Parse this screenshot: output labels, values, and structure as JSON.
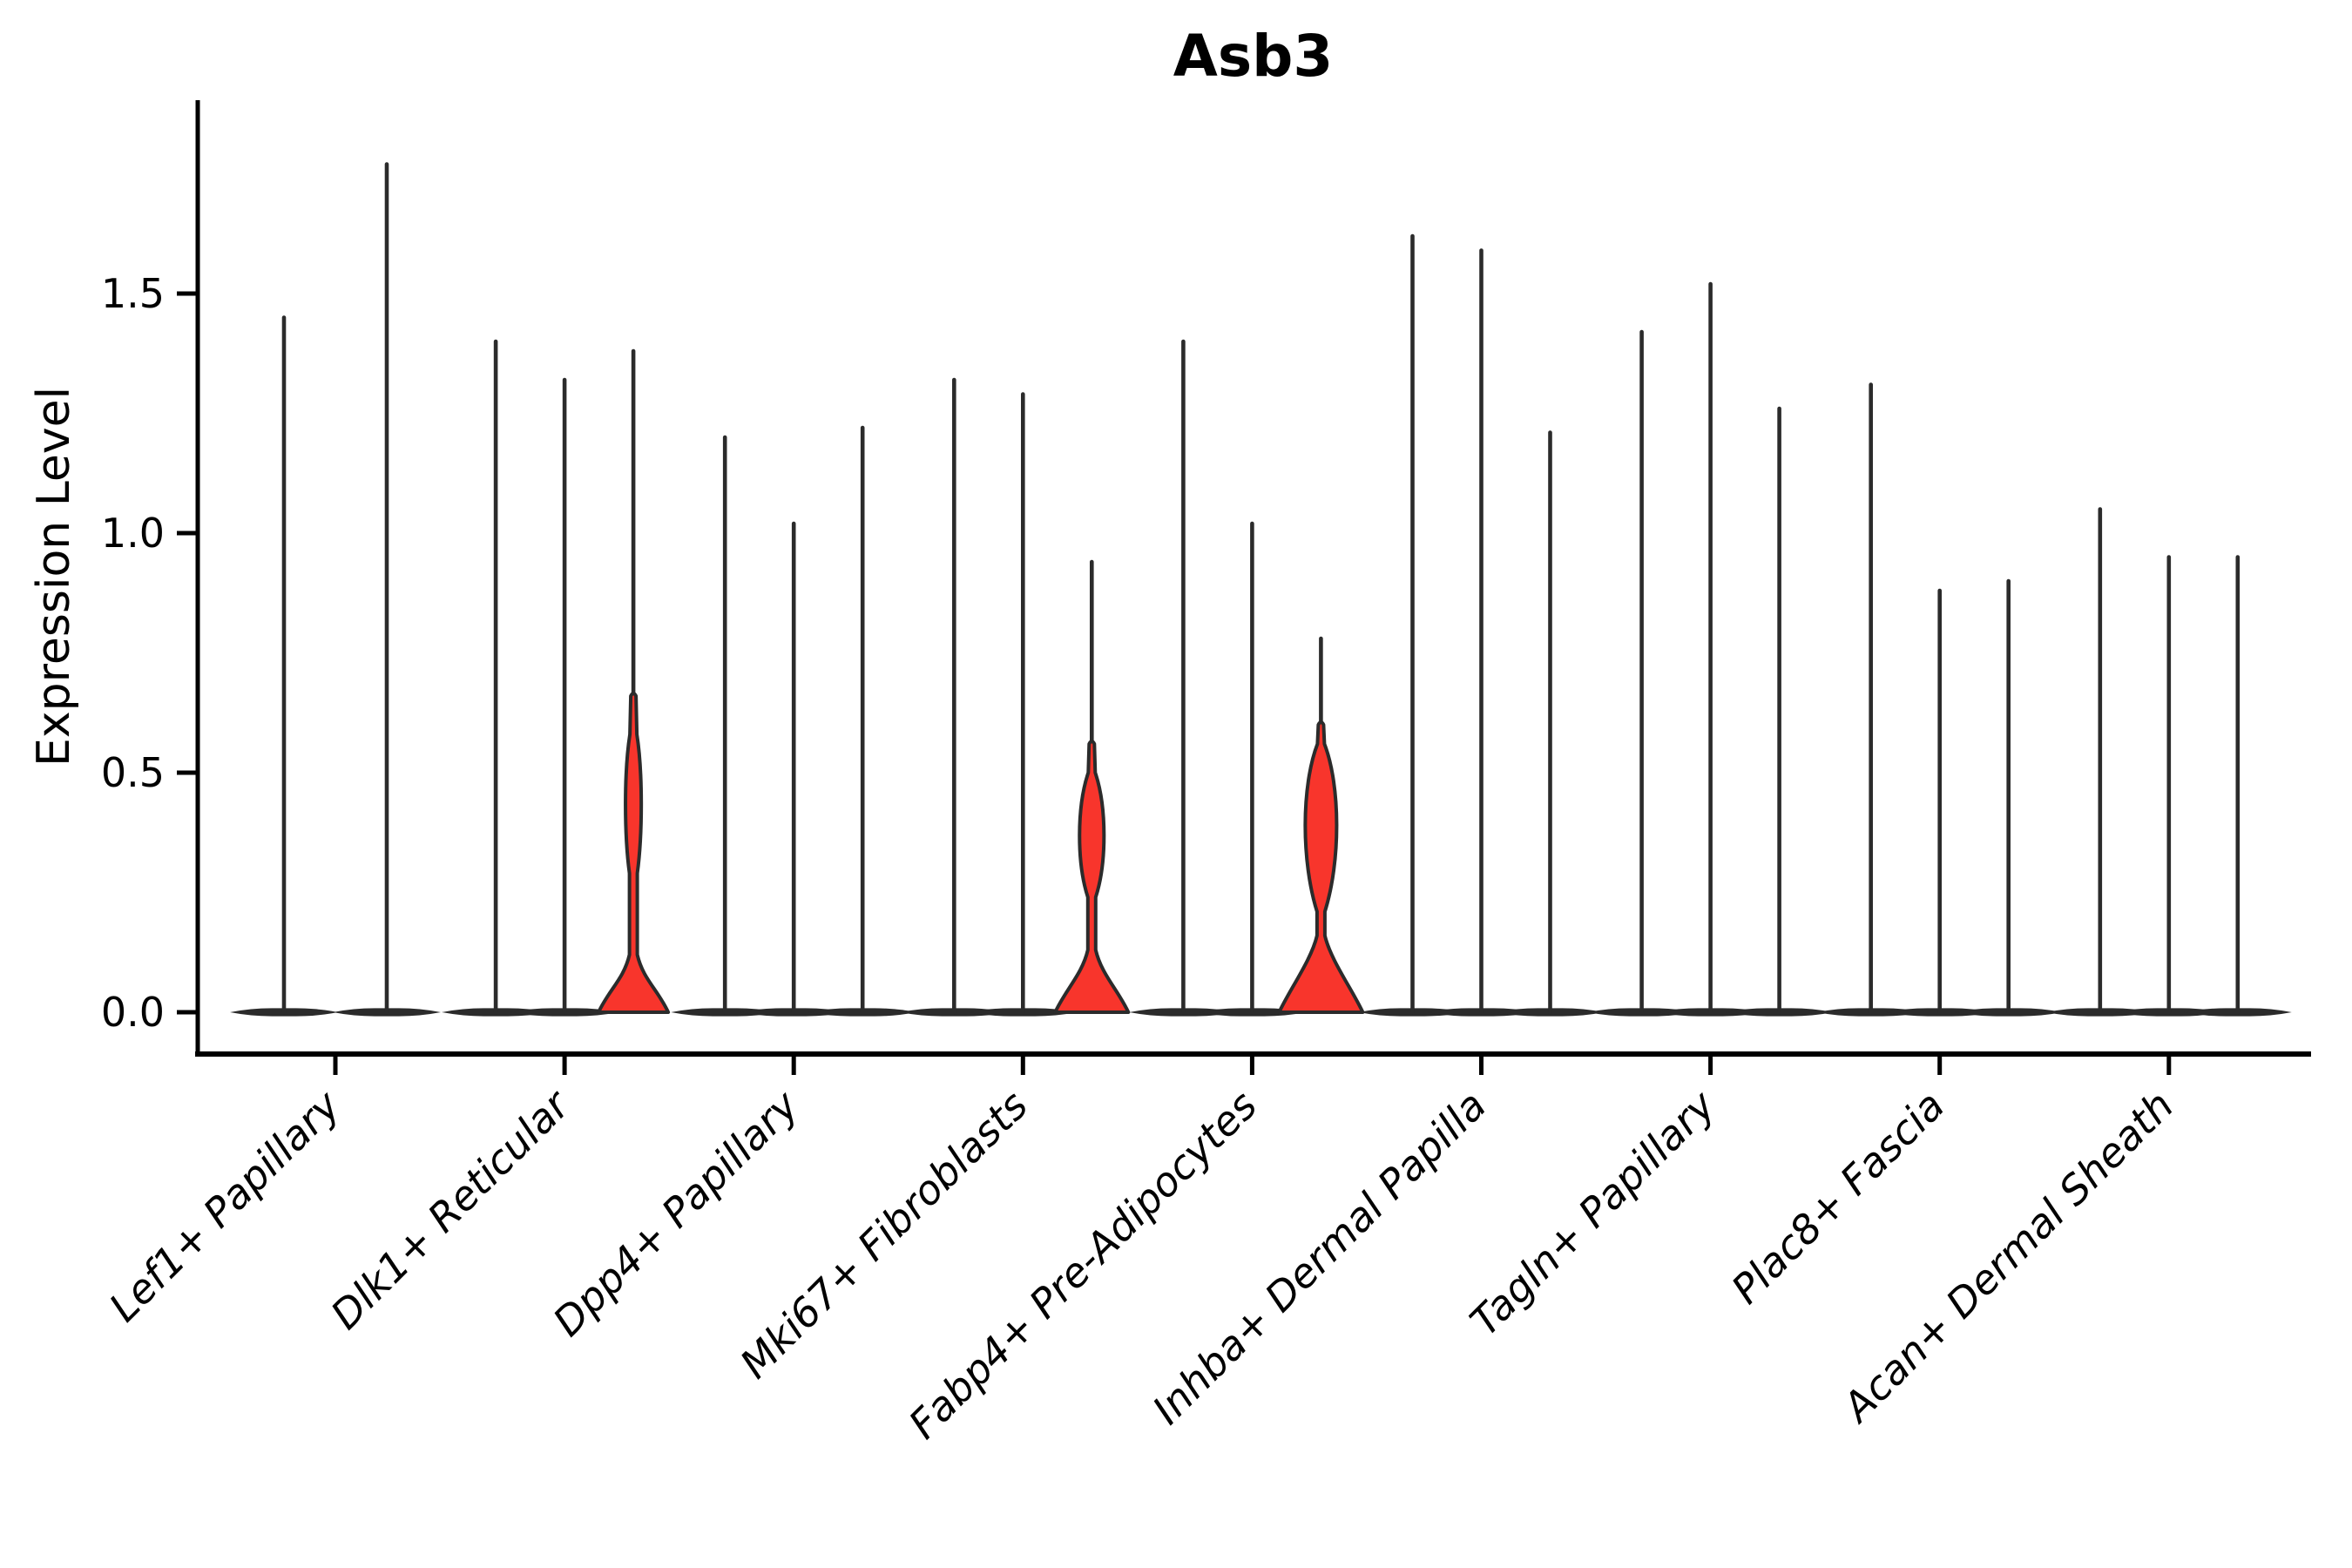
{
  "chart_data": {
    "type": "violin",
    "title": "Asb3",
    "ylabel": "Expression Level",
    "xlabel": "",
    "grid": false,
    "legend": "none",
    "yticks": [
      "0.0",
      "0.5",
      "1.0",
      "1.5"
    ],
    "ytick_values": [
      0.0,
      0.5,
      1.0,
      1.5
    ],
    "ylim": [
      -0.09,
      1.9
    ],
    "value_min_all_violins": 0.0,
    "colors": {
      "violin_edge": "#2b2b2b",
      "highlight_fill": "#f8352c",
      "axis": "#000000",
      "background": "#ffffff"
    },
    "categories": [
      "Lef1+ Papillary",
      "Dlk1+ Reticular",
      "Dpp4+ Papillary",
      "Mki67+ Fibroblasts",
      "Fabp4+ Pre-Adipocytes",
      "Inhba+ Dermal Papilla",
      "Tagln+ Papillary",
      "Plac8+ Fascia",
      "Acan+ Dermal Sheath"
    ],
    "groups": [
      {
        "category": "Lef1+ Papillary",
        "violins": [
          {
            "max": 1.45,
            "filled": false
          },
          {
            "max": 1.77,
            "filled": false
          }
        ]
      },
      {
        "category": "Dlk1+ Reticular",
        "violins": [
          {
            "max": 1.4,
            "filled": false
          },
          {
            "max": 1.32,
            "filled": false
          },
          {
            "max": 1.38,
            "filled": true,
            "base_hw": 40,
            "base_top": 0.12,
            "spindle": [
              0.29,
              0.44,
              0.58
            ],
            "spindle_hw": 8,
            "red_top": 0.66
          }
        ]
      },
      {
        "category": "Dpp4+ Papillary",
        "violins": [
          {
            "max": 1.2,
            "filled": false
          },
          {
            "max": 1.02,
            "filled": false
          },
          {
            "max": 1.22,
            "filled": false
          }
        ]
      },
      {
        "category": "Mki67+ Fibroblasts",
        "violins": [
          {
            "max": 1.32,
            "filled": false
          },
          {
            "max": 1.29,
            "filled": false
          },
          {
            "max": 0.94,
            "filled": true,
            "base_hw": 42,
            "base_top": 0.13,
            "spindle": [
              0.24,
              0.37,
              0.5
            ],
            "spindle_hw": 13,
            "red_top": 0.56
          }
        ]
      },
      {
        "category": "Fabp4+ Pre-Adipocytes",
        "violins": [
          {
            "max": 1.4,
            "filled": false
          },
          {
            "max": 1.02,
            "filled": false
          },
          {
            "max": 0.78,
            "filled": true,
            "base_hw": 48,
            "base_top": 0.16,
            "spindle": [
              0.21,
              0.4,
              0.56
            ],
            "spindle_hw": 17,
            "red_top": 0.6
          }
        ]
      },
      {
        "category": "Inhba+ Dermal Papilla",
        "violins": [
          {
            "max": 1.62,
            "filled": false
          },
          {
            "max": 1.59,
            "filled": false
          },
          {
            "max": 1.21,
            "filled": false
          }
        ]
      },
      {
        "category": "Tagln+ Papillary",
        "violins": [
          {
            "max": 1.42,
            "filled": false
          },
          {
            "max": 1.52,
            "filled": false
          },
          {
            "max": 1.26,
            "filled": false
          }
        ]
      },
      {
        "category": "Plac8+ Fascia",
        "violins": [
          {
            "max": 1.31,
            "filled": false
          },
          {
            "max": 0.88,
            "filled": false
          },
          {
            "max": 0.9,
            "filled": false
          }
        ]
      },
      {
        "category": "Acan+ Dermal Sheath",
        "violins": [
          {
            "max": 1.05,
            "filled": false
          },
          {
            "max": 0.95,
            "filled": false
          },
          {
            "max": 0.95,
            "filled": false
          }
        ]
      }
    ]
  }
}
